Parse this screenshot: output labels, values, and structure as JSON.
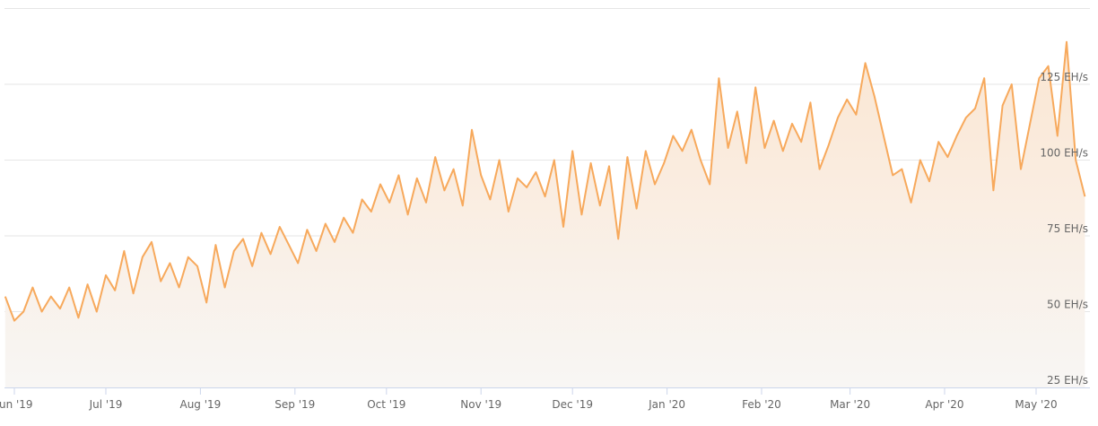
{
  "chart_data": {
    "type": "area",
    "title": "",
    "xlabel": "",
    "ylabel": "",
    "y_unit": "EH/s",
    "ylim": [
      25,
      150
    ],
    "y_ticks": [
      {
        "value": 25,
        "label": "25 EH/s"
      },
      {
        "value": 50,
        "label": "50 EH/s"
      },
      {
        "value": 75,
        "label": "75 EH/s"
      },
      {
        "value": 100,
        "label": "100 EH/s"
      },
      {
        "value": 125,
        "label": "125 EH/s"
      }
    ],
    "x_ticks": [
      {
        "date": "2019-06-01",
        "label": "Jun '19"
      },
      {
        "date": "2019-07-01",
        "label": "Jul '19"
      },
      {
        "date": "2019-08-01",
        "label": "Aug '19"
      },
      {
        "date": "2019-09-01",
        "label": "Sep '19"
      },
      {
        "date": "2019-10-01",
        "label": "Oct '19"
      },
      {
        "date": "2019-11-01",
        "label": "Nov '19"
      },
      {
        "date": "2019-12-01",
        "label": "Dec '19"
      },
      {
        "date": "2020-01-01",
        "label": "Jan '20"
      },
      {
        "date": "2020-02-01",
        "label": "Feb '20"
      },
      {
        "date": "2020-03-01",
        "label": "Mar '20"
      },
      {
        "date": "2020-04-01",
        "label": "Apr '20"
      },
      {
        "date": "2020-05-01",
        "label": "May '20"
      }
    ],
    "grid": true,
    "legend": "none",
    "colors": {
      "line": "#f7a95c",
      "fill_top": "#fbe6d2",
      "fill_bottom": "#f8f6f4",
      "grid": "#e6e6e6",
      "axis": "#ccd6eb"
    },
    "series": [
      {
        "points": [
          [
            "2019-05-29",
            55
          ],
          [
            "2019-06-01",
            47
          ],
          [
            "2019-06-04",
            50
          ],
          [
            "2019-06-07",
            58
          ],
          [
            "2019-06-10",
            50
          ],
          [
            "2019-06-13",
            55
          ],
          [
            "2019-06-16",
            51
          ],
          [
            "2019-06-19",
            58
          ],
          [
            "2019-06-22",
            48
          ],
          [
            "2019-06-25",
            59
          ],
          [
            "2019-06-28",
            50
          ],
          [
            "2019-07-01",
            62
          ],
          [
            "2019-07-04",
            57
          ],
          [
            "2019-07-07",
            70
          ],
          [
            "2019-07-10",
            56
          ],
          [
            "2019-07-13",
            68
          ],
          [
            "2019-07-16",
            73
          ],
          [
            "2019-07-19",
            60
          ],
          [
            "2019-07-22",
            66
          ],
          [
            "2019-07-25",
            58
          ],
          [
            "2019-07-28",
            68
          ],
          [
            "2019-07-31",
            65
          ],
          [
            "2019-08-03",
            53
          ],
          [
            "2019-08-06",
            72
          ],
          [
            "2019-08-09",
            58
          ],
          [
            "2019-08-12",
            70
          ],
          [
            "2019-08-15",
            74
          ],
          [
            "2019-08-18",
            65
          ],
          [
            "2019-08-21",
            76
          ],
          [
            "2019-08-24",
            69
          ],
          [
            "2019-08-27",
            78
          ],
          [
            "2019-08-30",
            72
          ],
          [
            "2019-09-02",
            66
          ],
          [
            "2019-09-05",
            77
          ],
          [
            "2019-09-08",
            70
          ],
          [
            "2019-09-11",
            79
          ],
          [
            "2019-09-14",
            73
          ],
          [
            "2019-09-17",
            81
          ],
          [
            "2019-09-20",
            76
          ],
          [
            "2019-09-23",
            87
          ],
          [
            "2019-09-26",
            83
          ],
          [
            "2019-09-29",
            92
          ],
          [
            "2019-10-02",
            86
          ],
          [
            "2019-10-05",
            95
          ],
          [
            "2019-10-08",
            82
          ],
          [
            "2019-10-11",
            94
          ],
          [
            "2019-10-14",
            86
          ],
          [
            "2019-10-17",
            101
          ],
          [
            "2019-10-20",
            90
          ],
          [
            "2019-10-23",
            97
          ],
          [
            "2019-10-26",
            85
          ],
          [
            "2019-10-29",
            110
          ],
          [
            "2019-11-01",
            95
          ],
          [
            "2019-11-04",
            87
          ],
          [
            "2019-11-07",
            100
          ],
          [
            "2019-11-10",
            83
          ],
          [
            "2019-11-13",
            94
          ],
          [
            "2019-11-16",
            91
          ],
          [
            "2019-11-19",
            96
          ],
          [
            "2019-11-22",
            88
          ],
          [
            "2019-11-25",
            100
          ],
          [
            "2019-11-28",
            78
          ],
          [
            "2019-12-01",
            103
          ],
          [
            "2019-12-04",
            82
          ],
          [
            "2019-12-07",
            99
          ],
          [
            "2019-12-10",
            85
          ],
          [
            "2019-12-13",
            98
          ],
          [
            "2019-12-16",
            74
          ],
          [
            "2019-12-19",
            101
          ],
          [
            "2019-12-22",
            84
          ],
          [
            "2019-12-25",
            103
          ],
          [
            "2019-12-28",
            92
          ],
          [
            "2019-12-31",
            99
          ],
          [
            "2020-01-03",
            108
          ],
          [
            "2020-01-06",
            103
          ],
          [
            "2020-01-09",
            110
          ],
          [
            "2020-01-12",
            100
          ],
          [
            "2020-01-15",
            92
          ],
          [
            "2020-01-18",
            127
          ],
          [
            "2020-01-21",
            104
          ],
          [
            "2020-01-24",
            116
          ],
          [
            "2020-01-27",
            99
          ],
          [
            "2020-01-30",
            124
          ],
          [
            "2020-02-02",
            104
          ],
          [
            "2020-02-05",
            113
          ],
          [
            "2020-02-08",
            103
          ],
          [
            "2020-02-11",
            112
          ],
          [
            "2020-02-14",
            106
          ],
          [
            "2020-02-17",
            119
          ],
          [
            "2020-02-20",
            97
          ],
          [
            "2020-02-23",
            105
          ],
          [
            "2020-02-26",
            114
          ],
          [
            "2020-02-29",
            120
          ],
          [
            "2020-03-03",
            115
          ],
          [
            "2020-03-06",
            132
          ],
          [
            "2020-03-09",
            121
          ],
          [
            "2020-03-12",
            108
          ],
          [
            "2020-03-15",
            95
          ],
          [
            "2020-03-18",
            97
          ],
          [
            "2020-03-21",
            86
          ],
          [
            "2020-03-24",
            100
          ],
          [
            "2020-03-27",
            93
          ],
          [
            "2020-03-30",
            106
          ],
          [
            "2020-04-02",
            101
          ],
          [
            "2020-04-05",
            108
          ],
          [
            "2020-04-08",
            114
          ],
          [
            "2020-04-11",
            117
          ],
          [
            "2020-04-14",
            127
          ],
          [
            "2020-04-17",
            90
          ],
          [
            "2020-04-20",
            118
          ],
          [
            "2020-04-23",
            125
          ],
          [
            "2020-04-26",
            97
          ],
          [
            "2020-04-29",
            112
          ],
          [
            "2020-05-02",
            127
          ],
          [
            "2020-05-05",
            131
          ],
          [
            "2020-05-08",
            108
          ],
          [
            "2020-05-11",
            139
          ],
          [
            "2020-05-14",
            100
          ],
          [
            "2020-05-17",
            88
          ]
        ]
      }
    ]
  }
}
